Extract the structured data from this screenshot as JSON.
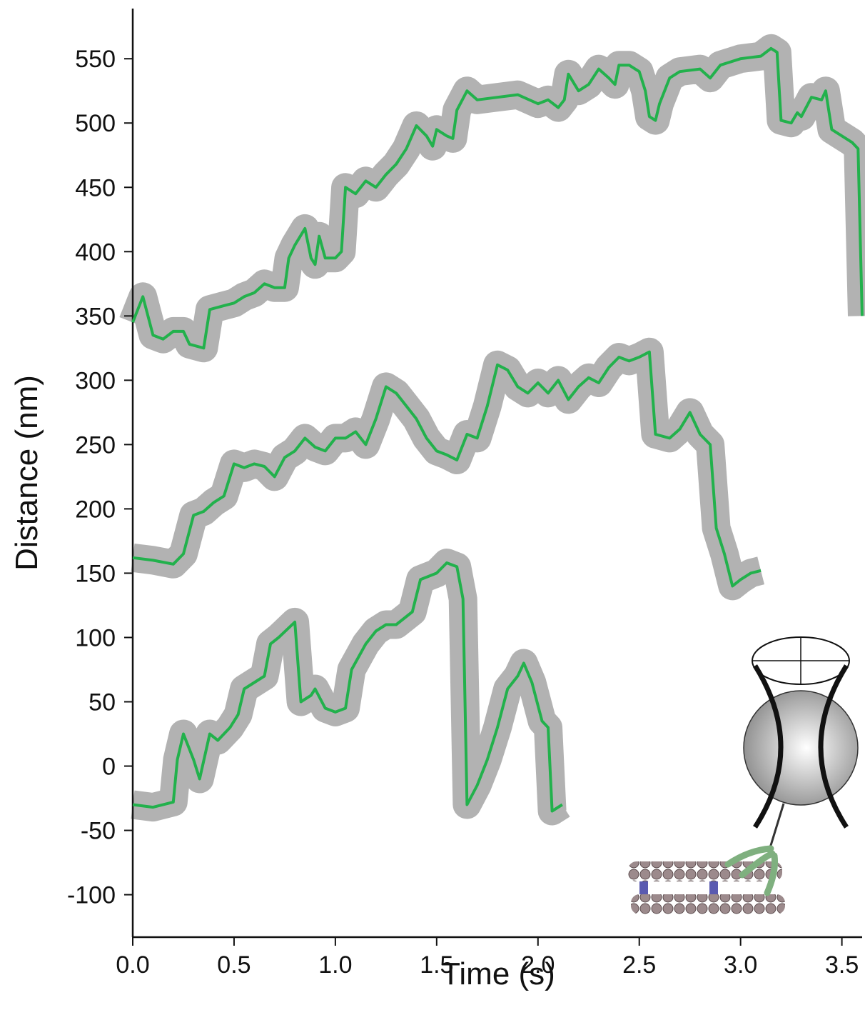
{
  "chart_data": {
    "type": "line",
    "x_label": "Time (s)",
    "y_label": "Distance (nm)",
    "xlim": [
      0,
      3.6
    ],
    "ylim": [
      -133,
      589
    ],
    "xticks": [
      {
        "value": 0,
        "label": "0.0"
      },
      0.5,
      {
        "value": 1,
        "label": "1.0"
      },
      1.5,
      {
        "value": 2,
        "label": "2.0"
      },
      2.5,
      {
        "value": 3,
        "label": "3.0"
      },
      3.5
    ],
    "yticks": [
      -100,
      -50,
      0,
      50,
      100,
      150,
      200,
      250,
      300,
      350,
      400,
      450,
      500,
      550
    ],
    "series": [
      {
        "color": "#22b14c",
        "x": [
          0,
          0.05,
          0.1,
          0.15,
          0.2,
          0.25,
          0.28,
          0.35,
          0.38,
          0.45,
          0.5,
          0.55,
          0.6,
          0.65,
          0.7,
          0.75,
          0.77,
          0.8,
          0.85,
          0.88,
          0.9,
          0.92,
          0.95,
          1.0,
          1.03,
          1.05,
          1.1,
          1.15,
          1.2,
          1.25,
          1.3,
          1.35,
          1.4,
          1.45,
          1.48,
          1.5,
          1.55,
          1.58,
          1.6,
          1.65,
          1.7,
          1.8,
          1.9,
          2.0,
          2.05,
          2.1,
          2.13,
          2.15,
          2.2,
          2.25,
          2.3,
          2.35,
          2.38,
          2.4,
          2.45,
          2.5,
          2.53,
          2.55,
          2.58,
          2.6,
          2.65,
          2.7,
          2.8,
          2.85,
          2.9,
          3.0,
          3.1,
          3.15,
          3.18,
          3.2,
          3.25,
          3.28,
          3.3,
          3.35,
          3.4,
          3.42,
          3.45,
          3.5,
          3.55,
          3.58,
          3.6
        ],
        "values": [
          345,
          365,
          335,
          332,
          338,
          338,
          328,
          325,
          355,
          358,
          360,
          365,
          368,
          375,
          372,
          372,
          395,
          405,
          418,
          395,
          390,
          412,
          395,
          395,
          400,
          450,
          445,
          455,
          450,
          460,
          468,
          480,
          498,
          490,
          482,
          495,
          490,
          488,
          510,
          525,
          518,
          520,
          522,
          515,
          518,
          512,
          518,
          538,
          525,
          530,
          542,
          535,
          530,
          545,
          545,
          540,
          525,
          505,
          502,
          515,
          535,
          540,
          542,
          535,
          545,
          550,
          552,
          558,
          555,
          502,
          500,
          508,
          505,
          520,
          518,
          525,
          495,
          490,
          485,
          480,
          350
        ]
      },
      {
        "color": "#22b14c",
        "x": [
          0,
          0.1,
          0.2,
          0.25,
          0.3,
          0.35,
          0.4,
          0.45,
          0.5,
          0.55,
          0.6,
          0.65,
          0.7,
          0.75,
          0.8,
          0.85,
          0.9,
          0.95,
          1.0,
          1.05,
          1.1,
          1.15,
          1.2,
          1.25,
          1.3,
          1.35,
          1.4,
          1.45,
          1.5,
          1.55,
          1.6,
          1.65,
          1.7,
          1.75,
          1.8,
          1.85,
          1.9,
          1.95,
          2.0,
          2.05,
          2.1,
          2.15,
          2.2,
          2.25,
          2.3,
          2.35,
          2.4,
          2.45,
          2.5,
          2.55,
          2.58,
          2.65,
          2.7,
          2.75,
          2.8,
          2.85,
          2.88,
          2.92,
          2.96,
          3.0,
          3.05,
          3.1
        ],
        "values": [
          162,
          160,
          157,
          165,
          195,
          198,
          205,
          210,
          235,
          232,
          235,
          233,
          225,
          240,
          245,
          255,
          248,
          245,
          255,
          255,
          260,
          250,
          270,
          295,
          290,
          280,
          270,
          255,
          245,
          242,
          238,
          258,
          255,
          280,
          312,
          308,
          295,
          290,
          298,
          290,
          300,
          285,
          295,
          302,
          298,
          310,
          318,
          315,
          318,
          322,
          258,
          255,
          262,
          275,
          258,
          250,
          185,
          165,
          140,
          145,
          150,
          152
        ]
      },
      {
        "color": "#22b14c",
        "x": [
          0,
          0.1,
          0.2,
          0.22,
          0.25,
          0.3,
          0.33,
          0.38,
          0.42,
          0.48,
          0.52,
          0.55,
          0.6,
          0.65,
          0.68,
          0.72,
          0.8,
          0.83,
          0.88,
          0.9,
          0.95,
          1.0,
          1.05,
          1.08,
          1.15,
          1.2,
          1.25,
          1.3,
          1.38,
          1.42,
          1.5,
          1.55,
          1.6,
          1.63,
          1.65,
          1.7,
          1.75,
          1.8,
          1.85,
          1.9,
          1.93,
          1.97,
          2.02,
          2.05,
          2.07,
          2.12
        ],
        "values": [
          -30,
          -32,
          -28,
          5,
          25,
          5,
          -10,
          25,
          20,
          30,
          40,
          60,
          65,
          70,
          95,
          100,
          112,
          50,
          55,
          60,
          45,
          42,
          45,
          75,
          95,
          105,
          110,
          110,
          120,
          145,
          150,
          158,
          155,
          130,
          -30,
          -15,
          5,
          30,
          60,
          70,
          80,
          65,
          35,
          30,
          -35,
          -30
        ]
      }
    ]
  }
}
